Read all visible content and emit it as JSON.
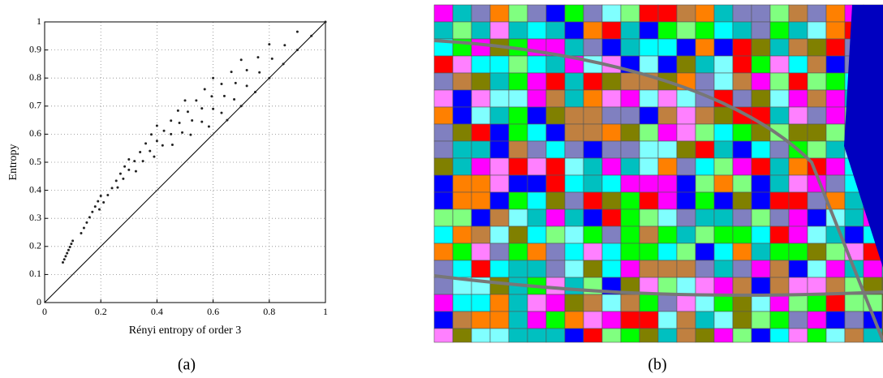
{
  "chart_data": {
    "type": "scatter",
    "xlabel": "Rényi entropy of order 3",
    "ylabel": "Entropy",
    "xlim": [
      0,
      1
    ],
    "ylim": [
      0,
      1
    ],
    "xticks": [
      0,
      0.2,
      0.4,
      0.6,
      0.8,
      1
    ],
    "yticks": [
      0,
      0.1,
      0.2,
      0.3,
      0.4,
      0.5,
      0.6,
      0.7,
      0.8,
      0.9,
      1
    ],
    "grid": true,
    "color": "#222222",
    "x": [
      0.1,
      0.2,
      0.3,
      0.4,
      0.5,
      0.6,
      0.7,
      0.8,
      0.9,
      1,
      0.095,
      0.19,
      0.285,
      0.38,
      0.475,
      0.57,
      0.665,
      0.76,
      0.855,
      0.95,
      0.09,
      0.18,
      0.27,
      0.36,
      0.45,
      0.54,
      0.63,
      0.72,
      0.81,
      0.9,
      0.085,
      0.17,
      0.255,
      0.34,
      0.425,
      0.51,
      0.595,
      0.68,
      0.765,
      0.85,
      0.08,
      0.16,
      0.24,
      0.32,
      0.4,
      0.48,
      0.56,
      0.64,
      0.72,
      0.8,
      0.075,
      0.15,
      0.225,
      0.3,
      0.375,
      0.45,
      0.525,
      0.6,
      0.675,
      0.75,
      0.07,
      0.14,
      0.21,
      0.28,
      0.35,
      0.42,
      0.49,
      0.56,
      0.63,
      0.7,
      0.065,
      0.13,
      0.195,
      0.26,
      0.325,
      0.39,
      0.455,
      0.52,
      0.585,
      0.65
    ],
    "values": [
      0.22,
      0.38,
      0.51,
      0.63,
      0.72,
      0.8,
      0.865,
      0.92,
      0.965,
      1,
      0.209,
      0.361,
      0.485,
      0.599,
      0.684,
      0.76,
      0.822,
      0.874,
      0.917,
      0.95,
      0.198,
      0.342,
      0.459,
      0.567,
      0.648,
      0.72,
      0.779,
      0.828,
      0.869,
      0.9,
      0.187,
      0.323,
      0.434,
      0.536,
      0.612,
      0.68,
      0.735,
      0.782,
      0.82,
      0.85,
      0.176,
      0.304,
      0.408,
      0.504,
      0.576,
      0.64,
      0.692,
      0.736,
      0.772,
      0.8,
      0.165,
      0.285,
      0.383,
      0.473,
      0.54,
      0.6,
      0.649,
      0.69,
      0.724,
      0.75,
      0.154,
      0.266,
      0.357,
      0.441,
      0.504,
      0.56,
      0.606,
      0.644,
      0.676,
      0.7,
      0.143,
      0.247,
      0.332,
      0.41,
      0.468,
      0.52,
      0.562,
      0.598,
      0.627,
      0.65
    ],
    "diagonal": {
      "x": [
        0,
        1
      ],
      "y": [
        0,
        1
      ]
    }
  },
  "captions": [
    "(a)",
    "(b)"
  ]
}
